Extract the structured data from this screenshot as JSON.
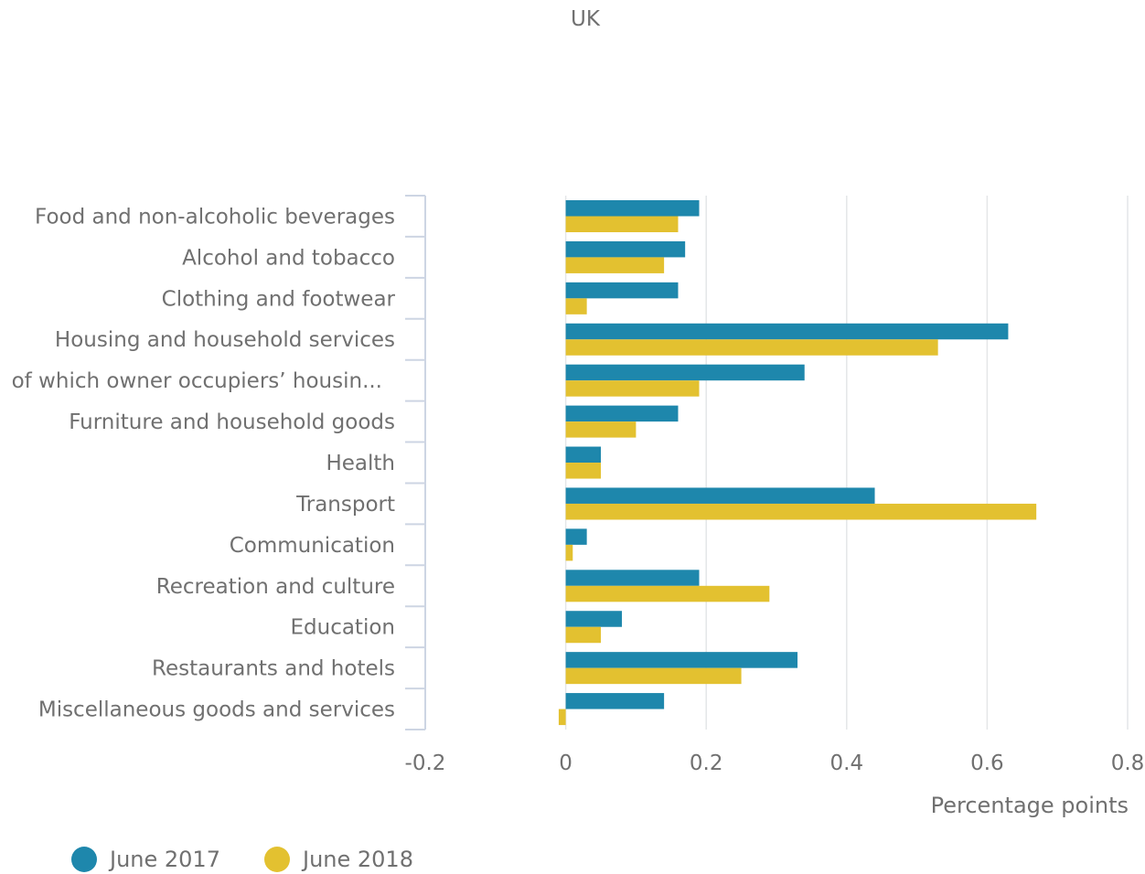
{
  "colors": {
    "series_0": "#1e87ac",
    "series_1": "#e3c130",
    "grid": "#e4e6e8",
    "axis": "#cdd5e3",
    "text": "#707070"
  },
  "chart_data": {
    "type": "bar",
    "orientation": "horizontal",
    "title": "UK",
    "xlabel": "Percentage points",
    "ylabel": "",
    "xlim": [
      -0.2,
      0.8
    ],
    "xticks": [
      "-0.2",
      "0",
      "0.2",
      "0.4",
      "0.6",
      "0.8"
    ],
    "grid": true,
    "legend_position": "bottom-left",
    "categories": [
      "Food and non-alcoholic beverages",
      "Alcohol and tobacco",
      "Clothing and footwear",
      "Housing and household services",
      "of which owner occupiers’ housin...",
      "Furniture and household goods",
      "Health",
      "Transport",
      "Communication",
      "Recreation and culture",
      "Education",
      "Restaurants and hotels",
      "Miscellaneous goods and services"
    ],
    "series": [
      {
        "name": "June 2017",
        "values": [
          0.19,
          0.17,
          0.16,
          0.63,
          0.34,
          0.16,
          0.05,
          0.44,
          0.03,
          0.19,
          0.08,
          0.33,
          0.14
        ]
      },
      {
        "name": "June 2018",
        "values": [
          0.16,
          0.14,
          0.03,
          0.53,
          0.19,
          0.1,
          0.05,
          0.67,
          0.01,
          0.29,
          0.05,
          0.25,
          -0.01
        ]
      }
    ]
  }
}
